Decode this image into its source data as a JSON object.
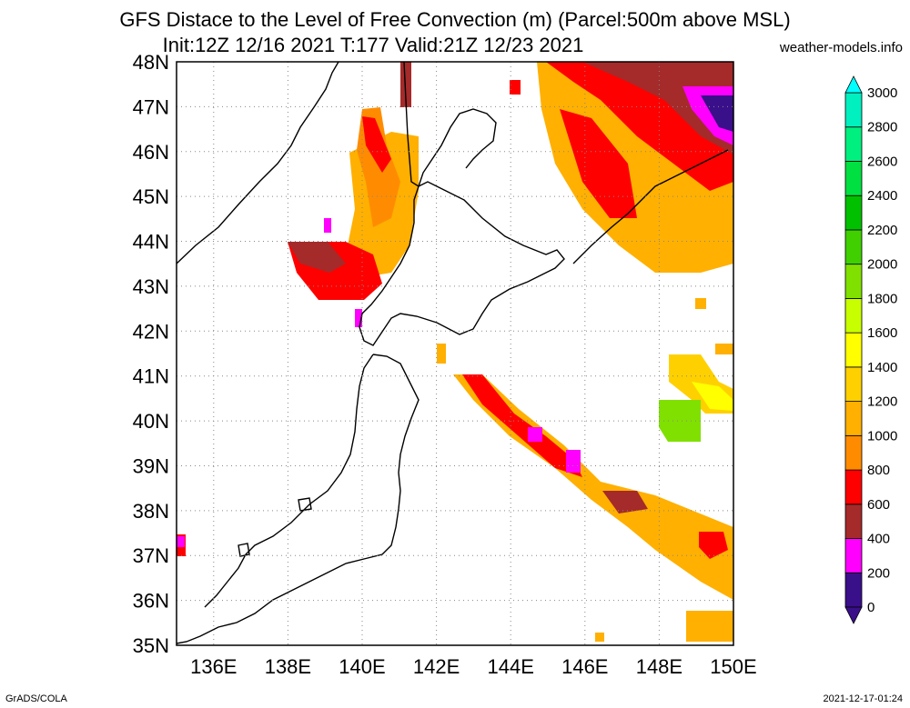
{
  "header": {
    "title_line1": "GFS Distace to the Level of Free Convection (m) (Parcel:500m above MSL)",
    "title_line2": "Init:12Z 12/16 2021 T:177 Valid:21Z 12/23 2021",
    "site": "weather-models.info"
  },
  "map": {
    "lat_labels": [
      "48N",
      "47N",
      "46N",
      "45N",
      "44N",
      "43N",
      "42N",
      "41N",
      "40N",
      "39N",
      "38N",
      "37N",
      "36N",
      "35N"
    ],
    "lon_labels": [
      "136E",
      "138E",
      "140E",
      "142E",
      "144E",
      "146E",
      "148E",
      "150E"
    ],
    "lat_range": [
      35,
      48
    ],
    "lon_range": [
      135,
      150
    ],
    "grid": "dotted"
  },
  "colorbar": {
    "labels": [
      "0",
      "200",
      "400",
      "600",
      "800",
      "1000",
      "1200",
      "1400",
      "1600",
      "1800",
      "2000",
      "2200",
      "2400",
      "2600",
      "2800",
      "3000"
    ],
    "colors": [
      "#3a0f8a",
      "#ff00ff",
      "#a52a2a",
      "#ff0000",
      "#ff8c00",
      "#ffb000",
      "#ffd000",
      "#ffff00",
      "#c8ff00",
      "#80e000",
      "#40d000",
      "#00c000",
      "#00e040",
      "#00f080",
      "#00f0c0",
      "#00ffff"
    ]
  },
  "footer": {
    "left": "GrADS/COLA",
    "right": "2021-12-17-01:24"
  }
}
